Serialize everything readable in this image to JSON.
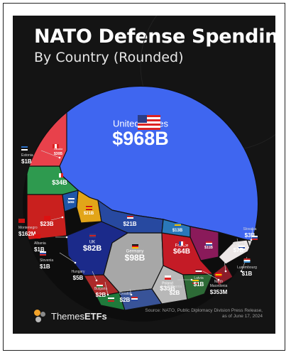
{
  "header": {
    "title": "NATO Defense Spending",
    "subtitle": "By Country (Rounded)"
  },
  "footer": {
    "brand_prefix": "Themes",
    "brand_suffix": "ETFs",
    "source_line1": "Source: NATO, Public Diplomacy Division Press Release,",
    "source_line2": "as of June 17, 2024"
  },
  "colors": {
    "background": "#141414",
    "united_states": "#3f66f0",
    "canada": "#e8414b",
    "germany": "#a7a7a7",
    "uk": "#1b2a8a",
    "france": "#c41b26",
    "logo_orange": "#f1a22a",
    "logo_grey": "#8a8a8a"
  },
  "chart_data": {
    "type": "voronoi-treemap",
    "title": "NATO Defense Spending",
    "subtitle": "By Country (Rounded)",
    "unit": "USD",
    "series": [
      {
        "country": "United States",
        "label": "$968B",
        "value_billion": 968
      },
      {
        "country": "Germany",
        "label": "$98B",
        "value_billion": 98
      },
      {
        "country": "UK",
        "label": "$82B",
        "value_billion": 82
      },
      {
        "country": "France",
        "label": "$64B",
        "value_billion": 64
      },
      {
        "country": "Poland",
        "label": "$35B",
        "value_billion": 35
      },
      {
        "country": "Italy",
        "label": "$34B",
        "value_billion": 34
      },
      {
        "country": "Canada",
        "label": "$30B",
        "value_billion": 30
      },
      {
        "country": "Turkey",
        "label": "$23B",
        "value_billion": 23
      },
      {
        "country": "Spain",
        "label": "$21B",
        "value_billion": 21
      },
      {
        "country": "Netherlands",
        "label": "$21B",
        "value_billion": 21
      },
      {
        "country": "Sweden",
        "label": "$13B",
        "value_billion": 13
      },
      {
        "country": "Norway",
        "label": "$11B",
        "value_billion": 11
      },
      {
        "country": "Greece",
        "label": "$8B",
        "value_billion": 8
      },
      {
        "country": "Finland",
        "label": "$7B",
        "value_billion": 7
      },
      {
        "country": "Hungary",
        "label": "$5B",
        "value_billion": 5
      },
      {
        "country": "Slovakia",
        "label": "$3B",
        "value_billion": 3
      },
      {
        "country": "Bulgaria",
        "label": "$2B",
        "value_billion": 2
      },
      {
        "country": "Croatia",
        "label": "$2B",
        "value_billion": 2
      },
      {
        "country": "Lithuania",
        "label": "$2B",
        "value_billion": 2
      },
      {
        "country": "Estonia",
        "label": "$1B",
        "value_billion": 1
      },
      {
        "country": "Albania",
        "label": "$1B",
        "value_billion": 1
      },
      {
        "country": "Slovenia",
        "label": "$1B",
        "value_billion": 1
      },
      {
        "country": "Latvia",
        "label": "$1B",
        "value_billion": 1
      },
      {
        "country": "Luxembourg",
        "label": "$1B",
        "value_billion": 1
      },
      {
        "country": "North Macedonia",
        "label": "$353M",
        "value_billion": 0.353
      },
      {
        "country": "Montenegro",
        "label": "$162M",
        "value_billion": 0.162
      }
    ]
  }
}
